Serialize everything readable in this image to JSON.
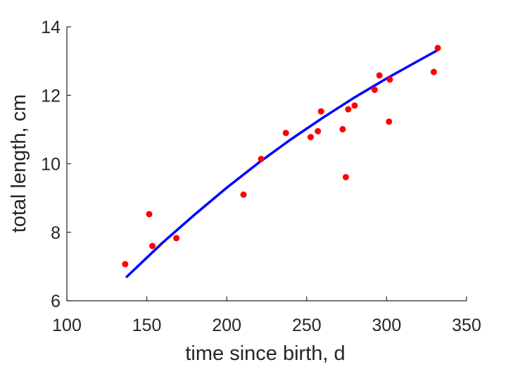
{
  "chart_data": {
    "type": "scatter",
    "xlabel": "time since birth, d",
    "ylabel": "total length, cm",
    "xlim": [
      100,
      350
    ],
    "ylim": [
      6,
      14
    ],
    "xticks": [
      "100",
      "150",
      "200",
      "250",
      "300",
      "350"
    ],
    "yticks": [
      "6",
      "8",
      "10",
      "12",
      "14"
    ],
    "grid": false,
    "series": [
      {
        "kind": "points",
        "color": "#ff0000",
        "x": [
          136.5,
          151.5,
          153.5,
          168.5,
          210.5,
          221.5,
          237.0,
          252.5,
          257.0,
          259.0,
          272.5,
          274.5,
          276.0,
          280.0,
          292.5,
          295.5,
          301.5,
          302.0,
          329.5,
          332.0
        ],
        "y": [
          7.07,
          8.53,
          7.6,
          7.83,
          9.1,
          10.14,
          10.9,
          10.78,
          10.95,
          11.53,
          11.01,
          9.61,
          11.59,
          11.7,
          12.16,
          12.58,
          11.23,
          12.46,
          12.68,
          13.38
        ]
      },
      {
        "kind": "line",
        "color": "#0000ff",
        "x": [
          137,
          160,
          180,
          200,
          220,
          240,
          260,
          280,
          300,
          320,
          332
        ],
        "y": [
          6.68,
          7.7,
          8.52,
          9.3,
          10.03,
          10.71,
          11.34,
          11.94,
          12.49,
          13.01,
          13.32
        ]
      }
    ]
  }
}
